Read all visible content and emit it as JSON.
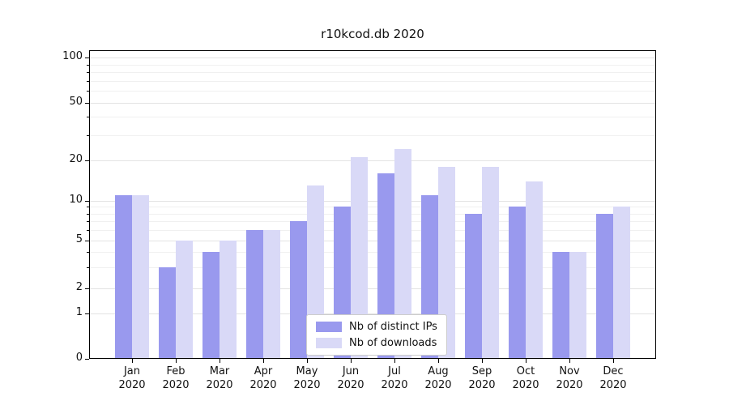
{
  "title": "r10kcod.db 2020",
  "colors": {
    "distinct_ips": "#9999ee",
    "downloads": "#d9d9f7",
    "grid_major": "#e3e3e3",
    "grid_minor": "#f0f0f0",
    "axis": "#000000",
    "text": "#111111",
    "legend_border": "#cccccc",
    "background": "#ffffff"
  },
  "legend": {
    "position": "lower center",
    "items": [
      {
        "label": "Nb of distinct IPs",
        "color_key": "distinct_ips"
      },
      {
        "label": "Nb of downloads",
        "color_key": "downloads"
      }
    ]
  },
  "chart_data": {
    "type": "bar",
    "title": "r10kcod.db 2020",
    "categories": [
      "Jan 2020",
      "Feb 2020",
      "Mar 2020",
      "Apr 2020",
      "May 2020",
      "Jun 2020",
      "Jul 2020",
      "Aug 2020",
      "Sep 2020",
      "Oct 2020",
      "Nov 2020",
      "Dec 2020"
    ],
    "series": [
      {
        "name": "Nb of distinct IPs",
        "color": "#9999ee",
        "values": [
          11,
          3,
          4,
          6,
          7,
          9,
          16,
          11,
          8,
          9,
          4,
          8
        ]
      },
      {
        "name": "Nb of downloads",
        "color": "#d9d9f7",
        "values": [
          11,
          5,
          5,
          6,
          13,
          21,
          24,
          18,
          18,
          14,
          4,
          9
        ]
      }
    ],
    "yscale": "symlog",
    "yticks": [
      0,
      1,
      2,
      5,
      10,
      20,
      50,
      100
    ],
    "minor_yticks": [
      3,
      4,
      6,
      7,
      8,
      9,
      30,
      40,
      60,
      70,
      80,
      90
    ],
    "ylim": [
      0,
      120
    ],
    "grid": "horizontal",
    "legend_position": "lower center"
  }
}
